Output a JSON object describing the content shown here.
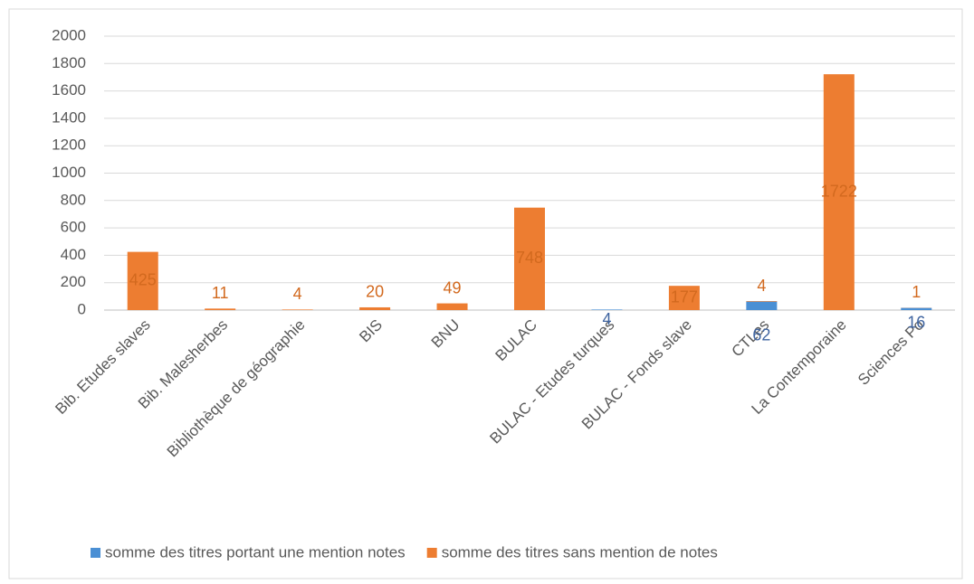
{
  "chart_data": {
    "type": "bar",
    "stacked": true,
    "categories": [
      "Bib. Etudes slaves",
      "Bib. Malesherbes",
      "Bibliothèque de géographie",
      "BIS",
      "BNU",
      "BULAC",
      "BULAC - Etudes turques",
      "BULAC - Fonds slave",
      "CTLes",
      "La Contemporaine",
      "Sciences Po"
    ],
    "series": [
      {
        "name": "somme des titres portant une mention notes",
        "color": "#4a8fd4",
        "label_color": "#3f64a0",
        "values": [
          null,
          null,
          null,
          null,
          null,
          null,
          4,
          null,
          62,
          null,
          16
        ]
      },
      {
        "name": "somme des titres sans mention de notes",
        "color": "#ed7d31",
        "label_color": "#d2691e",
        "values": [
          425,
          11,
          4,
          20,
          49,
          748,
          null,
          177,
          4,
          1722,
          1
        ]
      }
    ],
    "ylim": [
      0,
      2000
    ],
    "yticks": [
      0,
      200,
      400,
      600,
      800,
      1000,
      1200,
      1400,
      1600,
      1800,
      2000
    ],
    "grid": true,
    "legend": "bottom"
  }
}
